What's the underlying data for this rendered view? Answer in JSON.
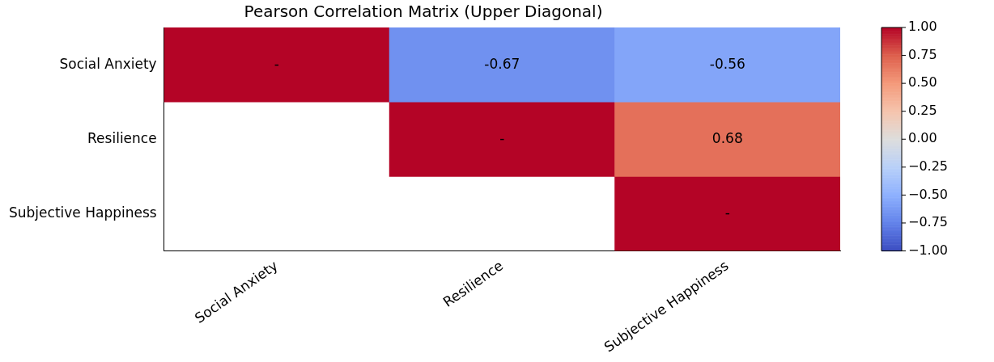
{
  "chart_data": {
    "type": "heatmap",
    "title": "Pearson Correlation Matrix (Upper Diagonal)",
    "categories": [
      "Social Anxiety",
      "Resilience",
      "Subjective Happiness"
    ],
    "y_categories": [
      "Social Anxiety",
      "Resilience",
      "Subjective Happiness"
    ],
    "cells": [
      [
        1,
        -0.67,
        -0.56
      ],
      [
        null,
        1,
        0.68
      ],
      [
        null,
        null,
        1
      ]
    ],
    "cell_labels": [
      [
        "-",
        "-0.67",
        "-0.56"
      ],
      [
        null,
        "-",
        "0.68"
      ],
      [
        null,
        null,
        "-"
      ]
    ],
    "clim": [
      -1,
      1
    ],
    "cticks": [
      {
        "value": -1,
        "label": "−1.00"
      },
      {
        "value": -0.75,
        "label": "−0.75"
      },
      {
        "value": -0.5,
        "label": "−0.50"
      },
      {
        "value": -0.25,
        "label": "−0.25"
      },
      {
        "value": 0,
        "label": "0.00"
      },
      {
        "value": 0.25,
        "label": "0.25"
      },
      {
        "value": 0.5,
        "label": "0.50"
      },
      {
        "value": 0.75,
        "label": "0.75"
      },
      {
        "value": 1,
        "label": "1.00"
      }
    ]
  }
}
